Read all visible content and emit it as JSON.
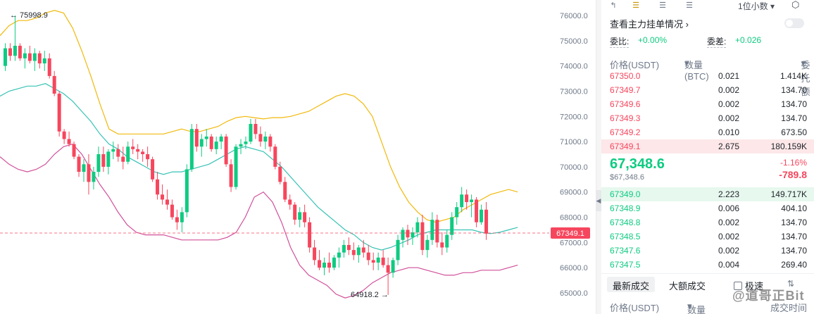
{
  "chart": {
    "y_axis_labels": [
      "76000.0",
      "75000.0",
      "74000.0",
      "73000.0",
      "72000.0",
      "71000.0",
      "70000.0",
      "69000.0",
      "68000.0",
      "67000.0",
      "66000.0",
      "65000.0"
    ],
    "high_annotation": "← 75998.9",
    "low_annotation": "64918.2 →",
    "current_price_tag": "67349.1",
    "colors": {
      "up": "#0ecb81",
      "down": "#f6465d",
      "upper_band": "#f0b90b",
      "middle_band": "#37c2b5",
      "lower_band": "#d0509a"
    }
  },
  "chart_data": {
    "type": "candlestick",
    "ylim": [
      64600,
      76200
    ],
    "ohlc": [
      [
        74000,
        74900,
        73800,
        74700
      ],
      [
        74700,
        74900,
        74200,
        74400
      ],
      [
        74400,
        75999,
        74200,
        74800
      ],
      [
        74800,
        74900,
        74200,
        74300
      ],
      [
        74300,
        74700,
        73900,
        74500
      ],
      [
        74500,
        74800,
        74100,
        74200
      ],
      [
        74200,
        74700,
        73800,
        74500
      ],
      [
        74500,
        74600,
        73900,
        74100
      ],
      [
        74100,
        74600,
        73800,
        74300
      ],
      [
        74300,
        74500,
        73500,
        73600
      ],
      [
        73600,
        73800,
        72800,
        72900
      ],
      [
        72900,
        73000,
        71200,
        71400
      ],
      [
        71400,
        71500,
        70900,
        71100
      ],
      [
        71100,
        71400,
        70800,
        70900
      ],
      [
        70900,
        71000,
        70300,
        70400
      ],
      [
        70400,
        70500,
        69600,
        69800
      ],
      [
        69800,
        70300,
        69400,
        70100
      ],
      [
        70100,
        70500,
        68900,
        69400
      ],
      [
        69400,
        70000,
        69100,
        69800
      ],
      [
        69800,
        70800,
        69600,
        70500
      ],
      [
        70500,
        70800,
        69800,
        70000
      ],
      [
        70000,
        70700,
        69700,
        70600
      ],
      [
        70600,
        71000,
        70300,
        70700
      ],
      [
        70700,
        70900,
        70200,
        70400
      ],
      [
        70400,
        70800,
        69900,
        70200
      ],
      [
        70200,
        71000,
        70100,
        70800
      ],
      [
        70800,
        71100,
        70500,
        70700
      ],
      [
        70700,
        70900,
        70300,
        70600
      ],
      [
        70600,
        70700,
        70200,
        70500
      ],
      [
        70500,
        70800,
        70000,
        70300
      ],
      [
        70300,
        70400,
        69400,
        69500
      ],
      [
        69500,
        69800,
        68700,
        68900
      ],
      [
        68900,
        69300,
        68500,
        68700
      ],
      [
        68700,
        69100,
        68300,
        68500
      ],
      [
        68500,
        68700,
        67900,
        68000
      ],
      [
        68000,
        68300,
        67500,
        67800
      ],
      [
        67800,
        68400,
        67400,
        68200
      ],
      [
        68200,
        70100,
        68000,
        69900
      ],
      [
        69900,
        71700,
        69800,
        71500
      ],
      [
        71500,
        71700,
        70600,
        70800
      ],
      [
        70800,
        71300,
        70400,
        71100
      ],
      [
        71100,
        71500,
        70800,
        71200
      ],
      [
        71200,
        71300,
        70600,
        70700
      ],
      [
        70700,
        71200,
        70500,
        71000
      ],
      [
        71000,
        71300,
        70700,
        71200
      ],
      [
        71200,
        71300,
        70000,
        70100
      ],
      [
        70100,
        70300,
        69000,
        69200
      ],
      [
        69200,
        70900,
        69100,
        70800
      ],
      [
        70800,
        71100,
        70500,
        70900
      ],
      [
        70900,
        71200,
        70700,
        71000
      ],
      [
        71000,
        71900,
        70900,
        71700
      ],
      [
        71700,
        71900,
        71100,
        71300
      ],
      [
        71300,
        71600,
        70800,
        71000
      ],
      [
        71000,
        71400,
        70700,
        71200
      ],
      [
        71200,
        71300,
        70600,
        70800
      ],
      [
        70800,
        70900,
        69900,
        70000
      ],
      [
        70000,
        70200,
        69300,
        69400
      ],
      [
        69400,
        69600,
        68600,
        68700
      ],
      [
        68700,
        68900,
        68300,
        68500
      ],
      [
        68500,
        68600,
        67700,
        67900
      ],
      [
        67900,
        68400,
        67600,
        68200
      ],
      [
        68200,
        68500,
        67600,
        67800
      ],
      [
        67800,
        68000,
        66600,
        66800
      ],
      [
        66800,
        67100,
        66100,
        66300
      ],
      [
        66300,
        66700,
        65900,
        66000
      ],
      [
        66000,
        66400,
        65700,
        66200
      ],
      [
        66200,
        66600,
        65800,
        66000
      ],
      [
        66000,
        66500,
        65900,
        66400
      ],
      [
        66400,
        66800,
        66000,
        66600
      ],
      [
        66600,
        67100,
        66400,
        66900
      ],
      [
        66900,
        67200,
        66500,
        66700
      ],
      [
        66700,
        67000,
        66300,
        66500
      ],
      [
        66500,
        66900,
        66200,
        66800
      ],
      [
        66800,
        67100,
        66400,
        66600
      ],
      [
        66600,
        66900,
        66100,
        66300
      ],
      [
        66300,
        66600,
        65900,
        66200
      ],
      [
        66200,
        66600,
        65900,
        66400
      ],
      [
        66400,
        66700,
        66000,
        66100
      ],
      [
        66100,
        66400,
        64918,
        65800
      ],
      [
        65800,
        66400,
        65600,
        66300
      ],
      [
        66300,
        67300,
        66100,
        67100
      ],
      [
        67100,
        67600,
        66800,
        67500
      ],
      [
        67500,
        67700,
        66900,
        67200
      ],
      [
        67200,
        67600,
        66900,
        67400
      ],
      [
        67400,
        68000,
        67200,
        67800
      ],
      [
        67800,
        68100,
        66500,
        66700
      ],
      [
        66700,
        67300,
        66400,
        67100
      ],
      [
        67100,
        68200,
        66900,
        67900
      ],
      [
        67900,
        68100,
        66800,
        67000
      ],
      [
        67000,
        67400,
        66500,
        66800
      ],
      [
        66800,
        67500,
        66600,
        67300
      ],
      [
        67300,
        68200,
        67100,
        68000
      ],
      [
        68000,
        68600,
        67700,
        68400
      ],
      [
        68400,
        69200,
        68200,
        68900
      ],
      [
        68900,
        69100,
        68300,
        68600
      ],
      [
        68600,
        68900,
        68000,
        68700
      ],
      [
        68700,
        68800,
        67600,
        67800
      ],
      [
        67800,
        68500,
        67700,
        68300
      ],
      [
        68300,
        68600,
        67100,
        67349
      ]
    ],
    "upper_band": [
      [
        0,
        75200
      ],
      [
        4,
        75600
      ],
      [
        8,
        75800
      ],
      [
        12,
        75800
      ],
      [
        16,
        75900
      ],
      [
        20,
        76100
      ],
      [
        24,
        76200
      ],
      [
        28,
        76100
      ],
      [
        32,
        75500
      ],
      [
        36,
        74600
      ],
      [
        40,
        73600
      ],
      [
        44,
        72500
      ],
      [
        48,
        71500
      ],
      [
        52,
        71300
      ],
      [
        56,
        71300
      ],
      [
        60,
        71300
      ],
      [
        64,
        71300
      ],
      [
        68,
        71300
      ],
      [
        72,
        71300
      ],
      [
        76,
        71400
      ],
      [
        80,
        71500
      ],
      [
        84,
        71400
      ],
      [
        88,
        71400
      ],
      [
        92,
        71500
      ],
      [
        96,
        71600
      ],
      [
        100,
        71800
      ],
      [
        104,
        71950
      ],
      [
        108,
        72000
      ],
      [
        112,
        71950
      ],
      [
        116,
        71900
      ],
      [
        120,
        71950
      ],
      [
        124,
        71950
      ],
      [
        128,
        72000
      ],
      [
        132,
        72100
      ],
      [
        136,
        72200
      ],
      [
        140,
        72400
      ],
      [
        144,
        72600
      ],
      [
        148,
        72800
      ],
      [
        152,
        72900
      ],
      [
        156,
        72800
      ],
      [
        160,
        72500
      ],
      [
        164,
        72000
      ],
      [
        168,
        71000
      ],
      [
        172,
        70000
      ],
      [
        176,
        69200
      ],
      [
        180,
        68600
      ],
      [
        184,
        68200
      ],
      [
        188,
        67900
      ],
      [
        192,
        67800
      ],
      [
        196,
        67900
      ],
      [
        200,
        68000
      ],
      [
        204,
        68300
      ],
      [
        208,
        68500
      ],
      [
        212,
        68700
      ],
      [
        216,
        68900
      ],
      [
        220,
        69000
      ],
      [
        224,
        69100
      ],
      [
        228,
        69000
      ]
    ],
    "middle_band": [
      [
        0,
        72800
      ],
      [
        4,
        73000
      ],
      [
        8,
        73100
      ],
      [
        12,
        73200
      ],
      [
        16,
        73200
      ],
      [
        20,
        73300
      ],
      [
        24,
        73100
      ],
      [
        28,
        72900
      ],
      [
        32,
        72600
      ],
      [
        36,
        72200
      ],
      [
        40,
        71800
      ],
      [
        44,
        71300
      ],
      [
        48,
        70900
      ],
      [
        52,
        70700
      ],
      [
        56,
        70400
      ],
      [
        60,
        70200
      ],
      [
        64,
        70000
      ],
      [
        68,
        69800
      ],
      [
        72,
        69700
      ],
      [
        76,
        69800
      ],
      [
        80,
        69800
      ],
      [
        84,
        69900
      ],
      [
        88,
        70000
      ],
      [
        92,
        70100
      ],
      [
        96,
        70300
      ],
      [
        100,
        70500
      ],
      [
        104,
        70700
      ],
      [
        108,
        70800
      ],
      [
        112,
        70700
      ],
      [
        116,
        70600
      ],
      [
        120,
        70300
      ],
      [
        124,
        70000
      ],
      [
        128,
        69600
      ],
      [
        132,
        69200
      ],
      [
        136,
        68800
      ],
      [
        140,
        68400
      ],
      [
        144,
        68100
      ],
      [
        148,
        67800
      ],
      [
        152,
        67500
      ],
      [
        156,
        67300
      ],
      [
        160,
        67000
      ],
      [
        164,
        66800
      ],
      [
        168,
        66700
      ],
      [
        172,
        66800
      ],
      [
        176,
        66950
      ],
      [
        180,
        67100
      ],
      [
        184,
        67300
      ],
      [
        188,
        67400
      ],
      [
        192,
        67500
      ],
      [
        196,
        67500
      ],
      [
        200,
        67500
      ],
      [
        204,
        67500
      ],
      [
        208,
        67500
      ],
      [
        212,
        67400
      ],
      [
        216,
        67350
      ],
      [
        220,
        67400
      ],
      [
        224,
        67500
      ],
      [
        228,
        67600
      ]
    ],
    "lower_band": [
      [
        0,
        70400
      ],
      [
        4,
        70100
      ],
      [
        8,
        69900
      ],
      [
        12,
        69800
      ],
      [
        16,
        69900
      ],
      [
        20,
        70100
      ],
      [
        24,
        70500
      ],
      [
        28,
        70800
      ],
      [
        32,
        70900
      ],
      [
        36,
        70500
      ],
      [
        40,
        69900
      ],
      [
        44,
        69300
      ],
      [
        48,
        68800
      ],
      [
        52,
        68200
      ],
      [
        56,
        67700
      ],
      [
        60,
        67400
      ],
      [
        64,
        67300
      ],
      [
        68,
        67300
      ],
      [
        72,
        67300
      ],
      [
        76,
        67200
      ],
      [
        80,
        67100
      ],
      [
        84,
        67100
      ],
      [
        88,
        67100
      ],
      [
        92,
        67100
      ],
      [
        96,
        67100
      ],
      [
        100,
        67200
      ],
      [
        104,
        67400
      ],
      [
        108,
        68000
      ],
      [
        112,
        68800
      ],
      [
        116,
        69000
      ],
      [
        120,
        68600
      ],
      [
        124,
        67800
      ],
      [
        128,
        66800
      ],
      [
        132,
        66100
      ],
      [
        136,
        65700
      ],
      [
        140,
        65500
      ],
      [
        144,
        65300
      ],
      [
        148,
        64950
      ],
      [
        152,
        64800
      ],
      [
        156,
        64900
      ],
      [
        160,
        65100
      ],
      [
        164,
        65400
      ],
      [
        168,
        65600
      ],
      [
        172,
        65800
      ],
      [
        176,
        65900
      ],
      [
        180,
        66000
      ],
      [
        184,
        66000
      ],
      [
        188,
        65900
      ],
      [
        192,
        65800
      ],
      [
        196,
        65700
      ],
      [
        200,
        65700
      ],
      [
        204,
        65800
      ],
      [
        208,
        65800
      ],
      [
        212,
        65900
      ],
      [
        216,
        65900
      ],
      [
        220,
        65900
      ],
      [
        224,
        66000
      ],
      [
        228,
        66100
      ]
    ]
  },
  "toolbar": {
    "decimal": "1位小数",
    "icons": [
      "back-icon",
      "book-both-icon",
      "book-bids-icon",
      "book-asks-icon",
      "settings-icon"
    ]
  },
  "orderbook": {
    "main_force_link": "查看主力挂单情况",
    "wei_bi_label": "委比:",
    "wei_bi_value": "+0.00%",
    "wei_cha_label": "委差:",
    "wei_cha_value": "+0.026",
    "headers": {
      "price": "价格(USDT)",
      "qty": "数量 (BTC)",
      "total": "委托额"
    },
    "asks": [
      {
        "price": "67350.0",
        "qty": "0.021",
        "total": "1.414K",
        "fill": 0.02
      },
      {
        "price": "67349.7",
        "qty": "0.002",
        "total": "134.70",
        "fill": 0.01
      },
      {
        "price": "67349.6",
        "qty": "0.002",
        "total": "134.70",
        "fill": 0.01
      },
      {
        "price": "67349.3",
        "qty": "0.002",
        "total": "134.70",
        "fill": 0.01
      },
      {
        "price": "67349.2",
        "qty": "0.010",
        "total": "673.50",
        "fill": 0.01
      },
      {
        "price": "67349.1",
        "qty": "2.675",
        "total": "180.159K",
        "fill": 1.0
      }
    ],
    "last_price": "67,348.6",
    "mark_price": "$67,348.6",
    "change_pct": "-1.16%",
    "change_abs": "-789.8",
    "bids": [
      {
        "price": "67349.0",
        "qty": "2.223",
        "total": "149.717K",
        "fill": 1.0
      },
      {
        "price": "67348.9",
        "qty": "0.006",
        "total": "404.10",
        "fill": 0.01
      },
      {
        "price": "67348.8",
        "qty": "0.002",
        "total": "134.70",
        "fill": 0.01
      },
      {
        "price": "67348.5",
        "qty": "0.002",
        "total": "134.70",
        "fill": 0.01
      },
      {
        "price": "67347.6",
        "qty": "0.002",
        "total": "134.70",
        "fill": 0.01
      },
      {
        "price": "67347.5",
        "qty": "0.004",
        "total": "269.40",
        "fill": 0.01
      }
    ]
  },
  "trades": {
    "tab_latest": "最新成交",
    "tab_large": "大额成交",
    "fast_label": "极速",
    "headers": {
      "price": "价格(USDT)",
      "qty": "数量(BTC)",
      "time": "成交时间"
    }
  },
  "watermark": "@道哥正Bit"
}
